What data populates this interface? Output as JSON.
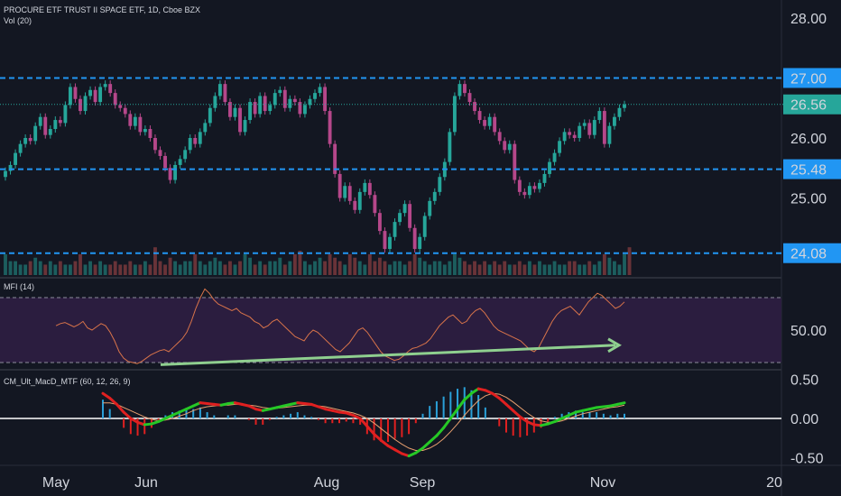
{
  "header": {
    "symbol_line": "PROCURE ETF TRUST II SPACE ETF, 1D, Cboe BZX",
    "volume_label": "Vol (20)"
  },
  "mfi_label": "MFI (14)",
  "macd_label": "CM_Ult_MacD_MTF (60, 12, 26, 9)",
  "colors": {
    "background": "#131722",
    "up": "#26a69a",
    "down": "#b5478a",
    "level_line": "#2196f3",
    "level_label_bg": "#2196f3",
    "current_price_bg": "#26a69a",
    "mfi_band": "#2b1d3f",
    "mfi_line": "#d9744a",
    "trend_arrow": "#8fcf8f",
    "macd_up": "#26c826",
    "macd_down": "#e02020",
    "signal": "#e8a070"
  },
  "chart_data": [
    {
      "type": "candlestick",
      "title": "PROCURE ETF TRUST II SPACE ETF, 1D, Cboe BZX",
      "price_axis_ticks": [
        "28.00",
        "26.00",
        "25.00"
      ],
      "ylim": [
        23.7,
        28.3
      ],
      "x_ticks": [
        "May",
        "Jun",
        "Aug",
        "Sep",
        "Nov",
        "20"
      ],
      "levels": [
        {
          "value": 27.0,
          "label": "27.00"
        },
        {
          "value": 25.48,
          "label": "25.48"
        },
        {
          "value": 24.08,
          "label": "24.08"
        }
      ],
      "current_price": {
        "value": 26.56,
        "label": "26.56"
      },
      "closes": [
        25.45,
        25.55,
        25.75,
        25.9,
        26.0,
        25.95,
        26.2,
        26.35,
        26.05,
        26.15,
        26.3,
        26.25,
        26.55,
        26.85,
        26.65,
        26.45,
        26.7,
        26.8,
        26.6,
        26.85,
        26.9,
        26.75,
        26.55,
        26.5,
        26.4,
        26.2,
        26.35,
        26.1,
        26.15,
        26.0,
        25.8,
        25.7,
        25.5,
        25.3,
        25.55,
        25.65,
        25.8,
        26.0,
        25.9,
        26.1,
        26.25,
        26.5,
        26.7,
        26.9,
        26.6,
        26.35,
        26.5,
        26.1,
        26.3,
        26.6,
        26.4,
        26.7,
        26.45,
        26.55,
        26.75,
        26.8,
        26.5,
        26.65,
        26.6,
        26.4,
        26.55,
        26.65,
        26.75,
        26.85,
        26.45,
        25.9,
        25.4,
        25.0,
        25.2,
        24.95,
        24.8,
        25.1,
        25.25,
        25.05,
        24.75,
        24.45,
        24.15,
        24.35,
        24.6,
        24.75,
        24.9,
        24.5,
        24.15,
        24.35,
        24.7,
        24.95,
        25.1,
        25.35,
        25.6,
        26.1,
        26.7,
        26.9,
        26.75,
        26.6,
        26.45,
        26.3,
        26.2,
        26.35,
        26.1,
        25.95,
        25.8,
        25.9,
        25.3,
        25.1,
        25.05,
        25.2,
        25.15,
        25.25,
        25.4,
        25.6,
        25.75,
        25.95,
        26.1,
        26.05,
        26.0,
        26.2,
        26.25,
        26.05,
        26.3,
        26.45,
        25.9,
        26.2,
        26.35,
        26.5,
        26.56
      ],
      "volume": [
        0.3,
        0.2,
        0.2,
        0.15,
        0.15,
        0.2,
        0.25,
        0.2,
        0.15,
        0.2,
        0.15,
        0.2,
        0.15,
        0.15,
        0.2,
        0.3,
        0.15,
        0.2,
        0.15,
        0.2,
        0.15,
        0.15,
        0.2,
        0.15,
        0.15,
        0.2,
        0.15,
        0.15,
        0.2,
        0.15,
        0.4,
        0.2,
        0.15,
        0.25,
        0.2,
        0.15,
        0.2,
        0.2,
        0.3,
        0.2,
        0.15,
        0.2,
        0.25,
        0.2,
        0.15,
        0.2,
        0.15,
        0.2,
        0.3,
        0.25,
        0.15,
        0.2,
        0.15,
        0.2,
        0.2,
        0.25,
        0.15,
        0.2,
        0.3,
        0.35,
        0.2,
        0.15,
        0.2,
        0.25,
        0.2,
        0.3,
        0.25,
        0.2,
        0.15,
        0.3,
        0.25,
        0.2,
        0.15,
        0.3,
        0.2,
        0.25,
        0.2,
        0.15,
        0.2,
        0.2,
        0.15,
        0.2,
        0.3,
        0.25,
        0.2,
        0.15,
        0.2,
        0.2,
        0.15,
        0.2,
        0.3,
        0.25,
        0.2,
        0.15,
        0.2,
        0.15,
        0.2,
        0.15,
        0.2,
        0.15,
        0.2,
        0.15,
        0.15,
        0.2,
        0.15,
        0.2,
        0.15,
        0.2,
        0.15,
        0.15,
        0.2,
        0.15,
        0.15,
        0.2,
        0.2,
        0.15,
        0.15,
        0.2,
        0.15,
        0.2,
        0.3,
        0.25,
        0.2,
        0.15,
        0.3,
        0.4
      ]
    },
    {
      "type": "line",
      "title": "MFI (14)",
      "y_ticks": [
        "50.00"
      ],
      "ylim": [
        15,
        95
      ],
      "bands": [
        20,
        80
      ],
      "values": [
        54,
        56,
        57,
        55,
        53,
        55,
        58,
        52,
        50,
        53,
        56,
        54,
        48,
        40,
        30,
        24,
        21,
        20,
        19,
        21,
        24,
        27,
        29,
        31,
        32,
        30,
        34,
        38,
        42,
        48,
        58,
        70,
        80,
        88,
        84,
        78,
        74,
        72,
        70,
        68,
        70,
        66,
        64,
        62,
        58,
        56,
        52,
        54,
        58,
        60,
        56,
        52,
        48,
        44,
        42,
        40,
        46,
        50,
        48,
        44,
        40,
        36,
        32,
        30,
        34,
        38,
        44,
        50,
        52,
        48,
        42,
        36,
        30,
        26,
        24,
        22,
        23,
        26,
        30,
        33,
        34,
        36,
        38,
        42,
        48,
        54,
        58,
        62,
        64,
        60,
        56,
        58,
        64,
        68,
        70,
        66,
        60,
        54,
        50,
        48,
        46,
        44,
        42,
        40,
        36,
        32,
        30,
        34,
        42,
        50,
        58,
        64,
        68,
        70,
        72,
        68,
        64,
        70,
        76,
        80,
        84,
        82,
        78,
        74,
        70,
        72,
        76
      ]
    },
    {
      "type": "line",
      "title": "CM_Ult_MacD_MTF (60, 12, 26, 9)",
      "y_ticks": [
        "0.50",
        "0.00",
        "-0.50"
      ],
      "ylim": [
        -0.6,
        0.6
      ],
      "macd": [
        0.32,
        0.26,
        0.18,
        0.08,
        0.0,
        -0.05,
        -0.08,
        -0.07,
        -0.04,
        0.0,
        0.04,
        0.08,
        0.12,
        0.16,
        0.2,
        0.19,
        0.18,
        0.17,
        0.19,
        0.2,
        0.18,
        0.16,
        0.12,
        0.1,
        0.12,
        0.14,
        0.16,
        0.18,
        0.2,
        0.19,
        0.18,
        0.15,
        0.12,
        0.1,
        0.08,
        0.07,
        0.04,
        0.0,
        -0.1,
        -0.2,
        -0.28,
        -0.35,
        -0.4,
        -0.45,
        -0.48,
        -0.44,
        -0.38,
        -0.3,
        -0.22,
        -0.12,
        0.0,
        0.12,
        0.24,
        0.32,
        0.38,
        0.36,
        0.32,
        0.26,
        0.18,
        0.1,
        0.02,
        -0.04,
        -0.08,
        -0.09,
        -0.07,
        -0.04,
        0.0,
        0.04,
        0.08,
        0.1,
        0.12,
        0.14,
        0.15,
        0.16,
        0.18,
        0.2
      ],
      "signal": [
        0.2,
        0.2,
        0.18,
        0.14,
        0.1,
        0.06,
        0.02,
        -0.01,
        -0.03,
        -0.02,
        0.0,
        0.03,
        0.06,
        0.1,
        0.13,
        0.15,
        0.16,
        0.17,
        0.17,
        0.18,
        0.18,
        0.17,
        0.16,
        0.14,
        0.13,
        0.13,
        0.14,
        0.15,
        0.16,
        0.17,
        0.17,
        0.16,
        0.15,
        0.13,
        0.11,
        0.09,
        0.07,
        0.04,
        0.0,
        -0.06,
        -0.13,
        -0.2,
        -0.27,
        -0.33,
        -0.38,
        -0.41,
        -0.41,
        -0.38,
        -0.33,
        -0.26,
        -0.17,
        -0.07,
        0.04,
        0.14,
        0.23,
        0.29,
        0.32,
        0.31,
        0.27,
        0.21,
        0.14,
        0.07,
        0.01,
        -0.03,
        -0.05,
        -0.05,
        -0.03,
        0.0,
        0.03,
        0.06,
        0.08,
        0.1,
        0.12,
        0.14,
        0.15,
        0.17
      ]
    }
  ]
}
